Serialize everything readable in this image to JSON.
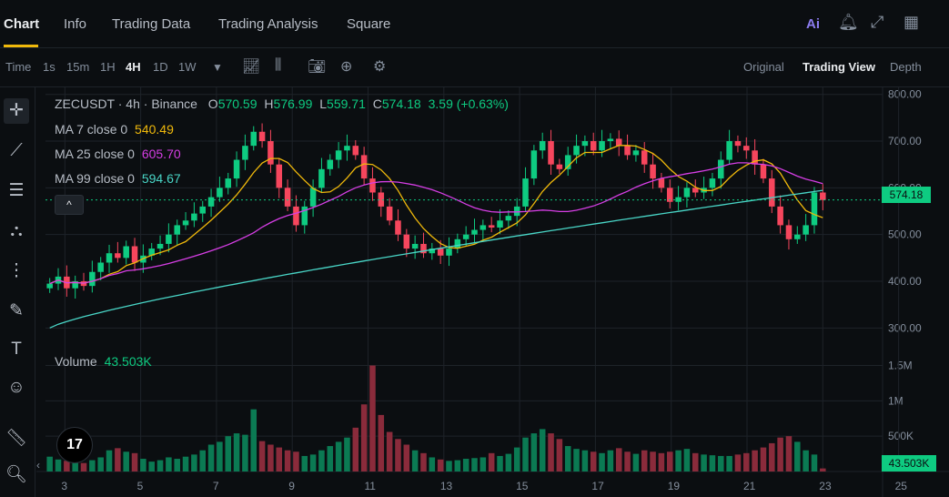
{
  "nav": {
    "tabs": [
      {
        "label": "Chart",
        "active": true
      },
      {
        "label": "Info"
      },
      {
        "label": "Trading Data"
      },
      {
        "label": "Trading Analysis"
      },
      {
        "label": "Square"
      }
    ],
    "ai_label": "Ai"
  },
  "toolbar": {
    "intervals": [
      "Time",
      "1s",
      "15m",
      "1H",
      "4H",
      "1D",
      "1W"
    ],
    "active_interval": "4H",
    "views": [
      "Original",
      "Trading View",
      "Depth"
    ],
    "active_view": "Trading View"
  },
  "legend": {
    "symbol": "ZECUSDT · 4h · Binance",
    "o_label": "O",
    "o": "570.59",
    "h_label": "H",
    "h": "576.99",
    "l_label": "L",
    "l": "559.71",
    "c_label": "C",
    "c": "574.18",
    "change": "3.59 (+0.63%)",
    "ma7_label": "MA 7 close 0",
    "ma7": "540.49",
    "ma25_label": "MA 25 close 0",
    "ma25": "605.70",
    "ma99_label": "MA 99 close 0",
    "ma99": "594.67",
    "volume_label": "Volume",
    "volume": "43.503K",
    "collapse": "^"
  },
  "price_tag": "574.18",
  "volume_tag": "43.503K",
  "tv_logo": "17",
  "colors": {
    "up": "#0ecb81",
    "down": "#f6465d",
    "ma7": "#f0b90b",
    "ma25": "#d63ee5",
    "ma99": "#49d6c7",
    "grid": "#1e2329",
    "text": "#848e9c"
  },
  "chart_data": {
    "type": "candlestick",
    "symbol": "ZECUSDT",
    "interval": "4h",
    "price_axis": {
      "ticks": [
        "800.00",
        "700.00",
        "600.00",
        "500.00",
        "400.00",
        "300.00"
      ],
      "range": [
        250,
        815
      ]
    },
    "volume_axis": {
      "ticks": [
        "1.5M",
        "1M",
        "500K"
      ],
      "range": [
        0,
        1700000
      ]
    },
    "x_ticks": [
      "3",
      "5",
      "7",
      "9",
      "11",
      "13",
      "15",
      "17",
      "19",
      "21",
      "23",
      "25"
    ],
    "candles_close": [
      395,
      410,
      385,
      400,
      390,
      420,
      440,
      460,
      450,
      475,
      440,
      455,
      470,
      480,
      500,
      520,
      530,
      545,
      560,
      580,
      600,
      620,
      660,
      690,
      720,
      700,
      650,
      600,
      560,
      520,
      560,
      600,
      640,
      660,
      680,
      690,
      670,
      620,
      590,
      560,
      530,
      500,
      470,
      480,
      460,
      470,
      455,
      470,
      490,
      500,
      510,
      520,
      515,
      530,
      540,
      560,
      620,
      680,
      700,
      650,
      640,
      670,
      690,
      700,
      680,
      700,
      705,
      690,
      670,
      680,
      650,
      620,
      600,
      570,
      580,
      600,
      590,
      600,
      620,
      660,
      700,
      690,
      680,
      650,
      620,
      560,
      520,
      490,
      500,
      520,
      590,
      574
    ],
    "volumes": [
      210000,
      170000,
      150000,
      130000,
      120000,
      160000,
      200000,
      300000,
      330000,
      280000,
      260000,
      180000,
      140000,
      160000,
      200000,
      180000,
      210000,
      240000,
      300000,
      380000,
      420000,
      500000,
      540000,
      520000,
      880000,
      430000,
      380000,
      340000,
      300000,
      280000,
      220000,
      240000,
      300000,
      360000,
      420000,
      480000,
      620000,
      950000,
      1500000,
      800000,
      560000,
      460000,
      380000,
      300000,
      260000,
      200000,
      170000,
      150000,
      160000,
      180000,
      190000,
      200000,
      260000,
      220000,
      250000,
      340000,
      480000,
      540000,
      600000,
      540000,
      460000,
      360000,
      320000,
      300000,
      280000,
      260000,
      300000,
      330000,
      280000,
      250000,
      300000,
      280000,
      260000,
      280000,
      300000,
      320000,
      260000,
      240000,
      230000,
      220000,
      220000,
      240000,
      260000,
      300000,
      340000,
      400000,
      480000,
      500000,
      420000,
      300000,
      240000,
      43503
    ],
    "ma7_last": 540.49,
    "ma25_last": 605.7,
    "ma99_last": 594.67,
    "last_price": 574.18
  }
}
